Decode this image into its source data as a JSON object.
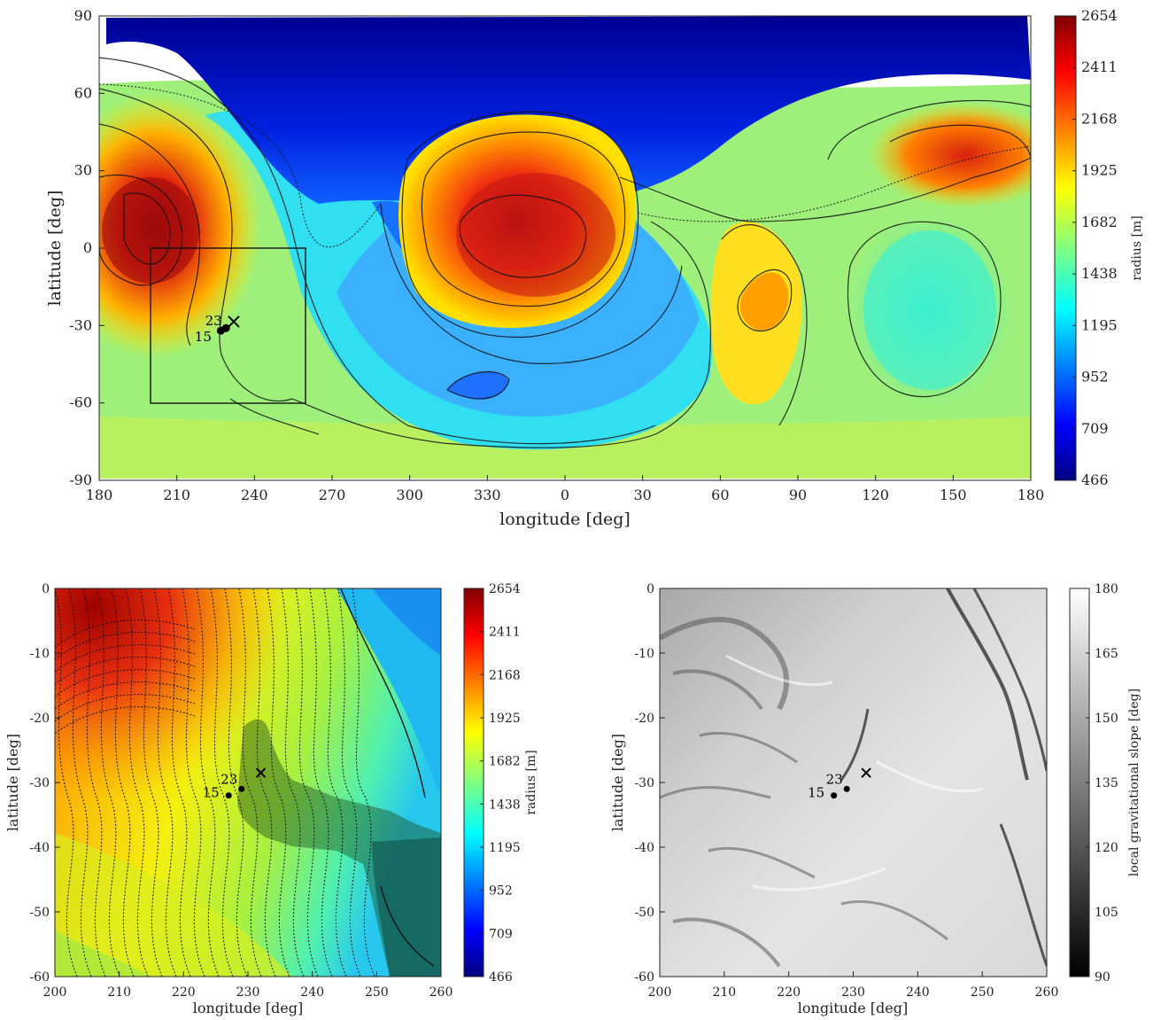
{
  "chart_data": [
    {
      "type": "heatmap",
      "panel": "top",
      "xlabel": "longitude [deg]",
      "ylabel": "latitude [deg]",
      "xticks": [
        "180",
        "210",
        "240",
        "270",
        "300",
        "330",
        "0",
        "30",
        "60",
        "90",
        "120",
        "150",
        "180"
      ],
      "yticks": [
        "90",
        "60",
        "30",
        "0",
        "-30",
        "-60",
        "-90"
      ],
      "colorbar": {
        "label": "radius [m]",
        "ticks": [
          "2654",
          "2411",
          "2168",
          "1925",
          "1682",
          "1438",
          "1195",
          "952",
          "709",
          "466"
        ],
        "colormap": "jet",
        "range": [
          466,
          2654
        ]
      },
      "inset_box": {
        "lon": [
          200,
          260
        ],
        "lat": [
          -60,
          0
        ]
      },
      "markers": [
        {
          "label": "23",
          "lon": 229,
          "lat": -31
        },
        {
          "label": "15",
          "lon": 227,
          "lat": -32
        }
      ],
      "cross": {
        "lon": 232,
        "lat": -28.5
      }
    },
    {
      "type": "heatmap",
      "panel": "bottom-left",
      "xlabel": "longitude [deg]",
      "ylabel": "latitude [deg]",
      "xticks": [
        "200",
        "210",
        "220",
        "230",
        "240",
        "250",
        "260"
      ],
      "yticks": [
        "0",
        "-10",
        "-20",
        "-30",
        "-40",
        "-50",
        "-60"
      ],
      "xlim": [
        200,
        260
      ],
      "ylim": [
        -60,
        0
      ],
      "colorbar": {
        "label": "radius [m]",
        "ticks": [
          "2654",
          "2411",
          "2168",
          "1925",
          "1682",
          "1438",
          "1195",
          "952",
          "709",
          "466"
        ],
        "colormap": "jet",
        "range": [
          466,
          2654
        ]
      },
      "markers": [
        {
          "label": "15",
          "lon": 227,
          "lat": -32
        },
        {
          "label": "23",
          "lon": 229,
          "lat": -31
        }
      ],
      "cross": {
        "lon": 232,
        "lat": -28.5
      }
    },
    {
      "type": "heatmap",
      "panel": "bottom-right",
      "xlabel": "longitude [deg]",
      "ylabel": "latitude [deg]",
      "xticks": [
        "200",
        "210",
        "220",
        "230",
        "240",
        "250",
        "260"
      ],
      "yticks": [
        "0",
        "-10",
        "-20",
        "-30",
        "-40",
        "-50",
        "-60"
      ],
      "xlim": [
        200,
        260
      ],
      "ylim": [
        -60,
        0
      ],
      "colorbar": {
        "label": "local gravitational slope [deg]",
        "ticks": [
          "180",
          "165",
          "150",
          "135",
          "120",
          "105",
          "90"
        ],
        "colormap": "gray",
        "range": [
          90,
          180
        ]
      },
      "markers": [
        {
          "label": "15",
          "lon": 227,
          "lat": -32
        },
        {
          "label": "23",
          "lon": 229,
          "lat": -31
        }
      ],
      "cross": {
        "lon": 232,
        "lat": -28.5
      }
    }
  ]
}
